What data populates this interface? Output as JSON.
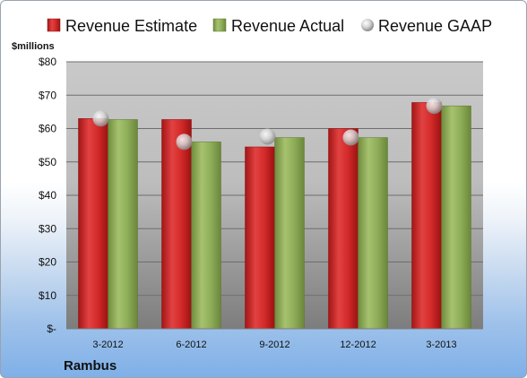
{
  "chart_data": {
    "type": "bar",
    "title": "",
    "xlabel": "",
    "ylabel": "$millions",
    "company": "Rambus",
    "categories": [
      "3-2012",
      "6-2012",
      "9-2012",
      "12-2012",
      "3-2013"
    ],
    "series": [
      {
        "name": "Revenue Estimate",
        "type": "bar",
        "color": "#d42a2a",
        "values": [
          63,
          62.7,
          54.5,
          60,
          67.8
        ]
      },
      {
        "name": "Revenue Actual",
        "type": "bar",
        "color": "#8fae5a",
        "values": [
          62.7,
          56,
          57.3,
          57.3,
          66.8
        ]
      },
      {
        "name": "Revenue GAAP",
        "type": "marker",
        "color": "#c8c8c8",
        "values": [
          63,
          56,
          57.6,
          57.3,
          66.8
        ]
      }
    ],
    "ylim": [
      0,
      80
    ],
    "yticks": [
      0,
      10,
      20,
      30,
      40,
      50,
      60,
      70,
      80
    ],
    "ytick_labels": [
      "$-",
      "$10",
      "$20",
      "$30",
      "$40",
      "$50",
      "$60",
      "$70",
      "$80"
    ],
    "legend_position": "top",
    "grid": true
  }
}
